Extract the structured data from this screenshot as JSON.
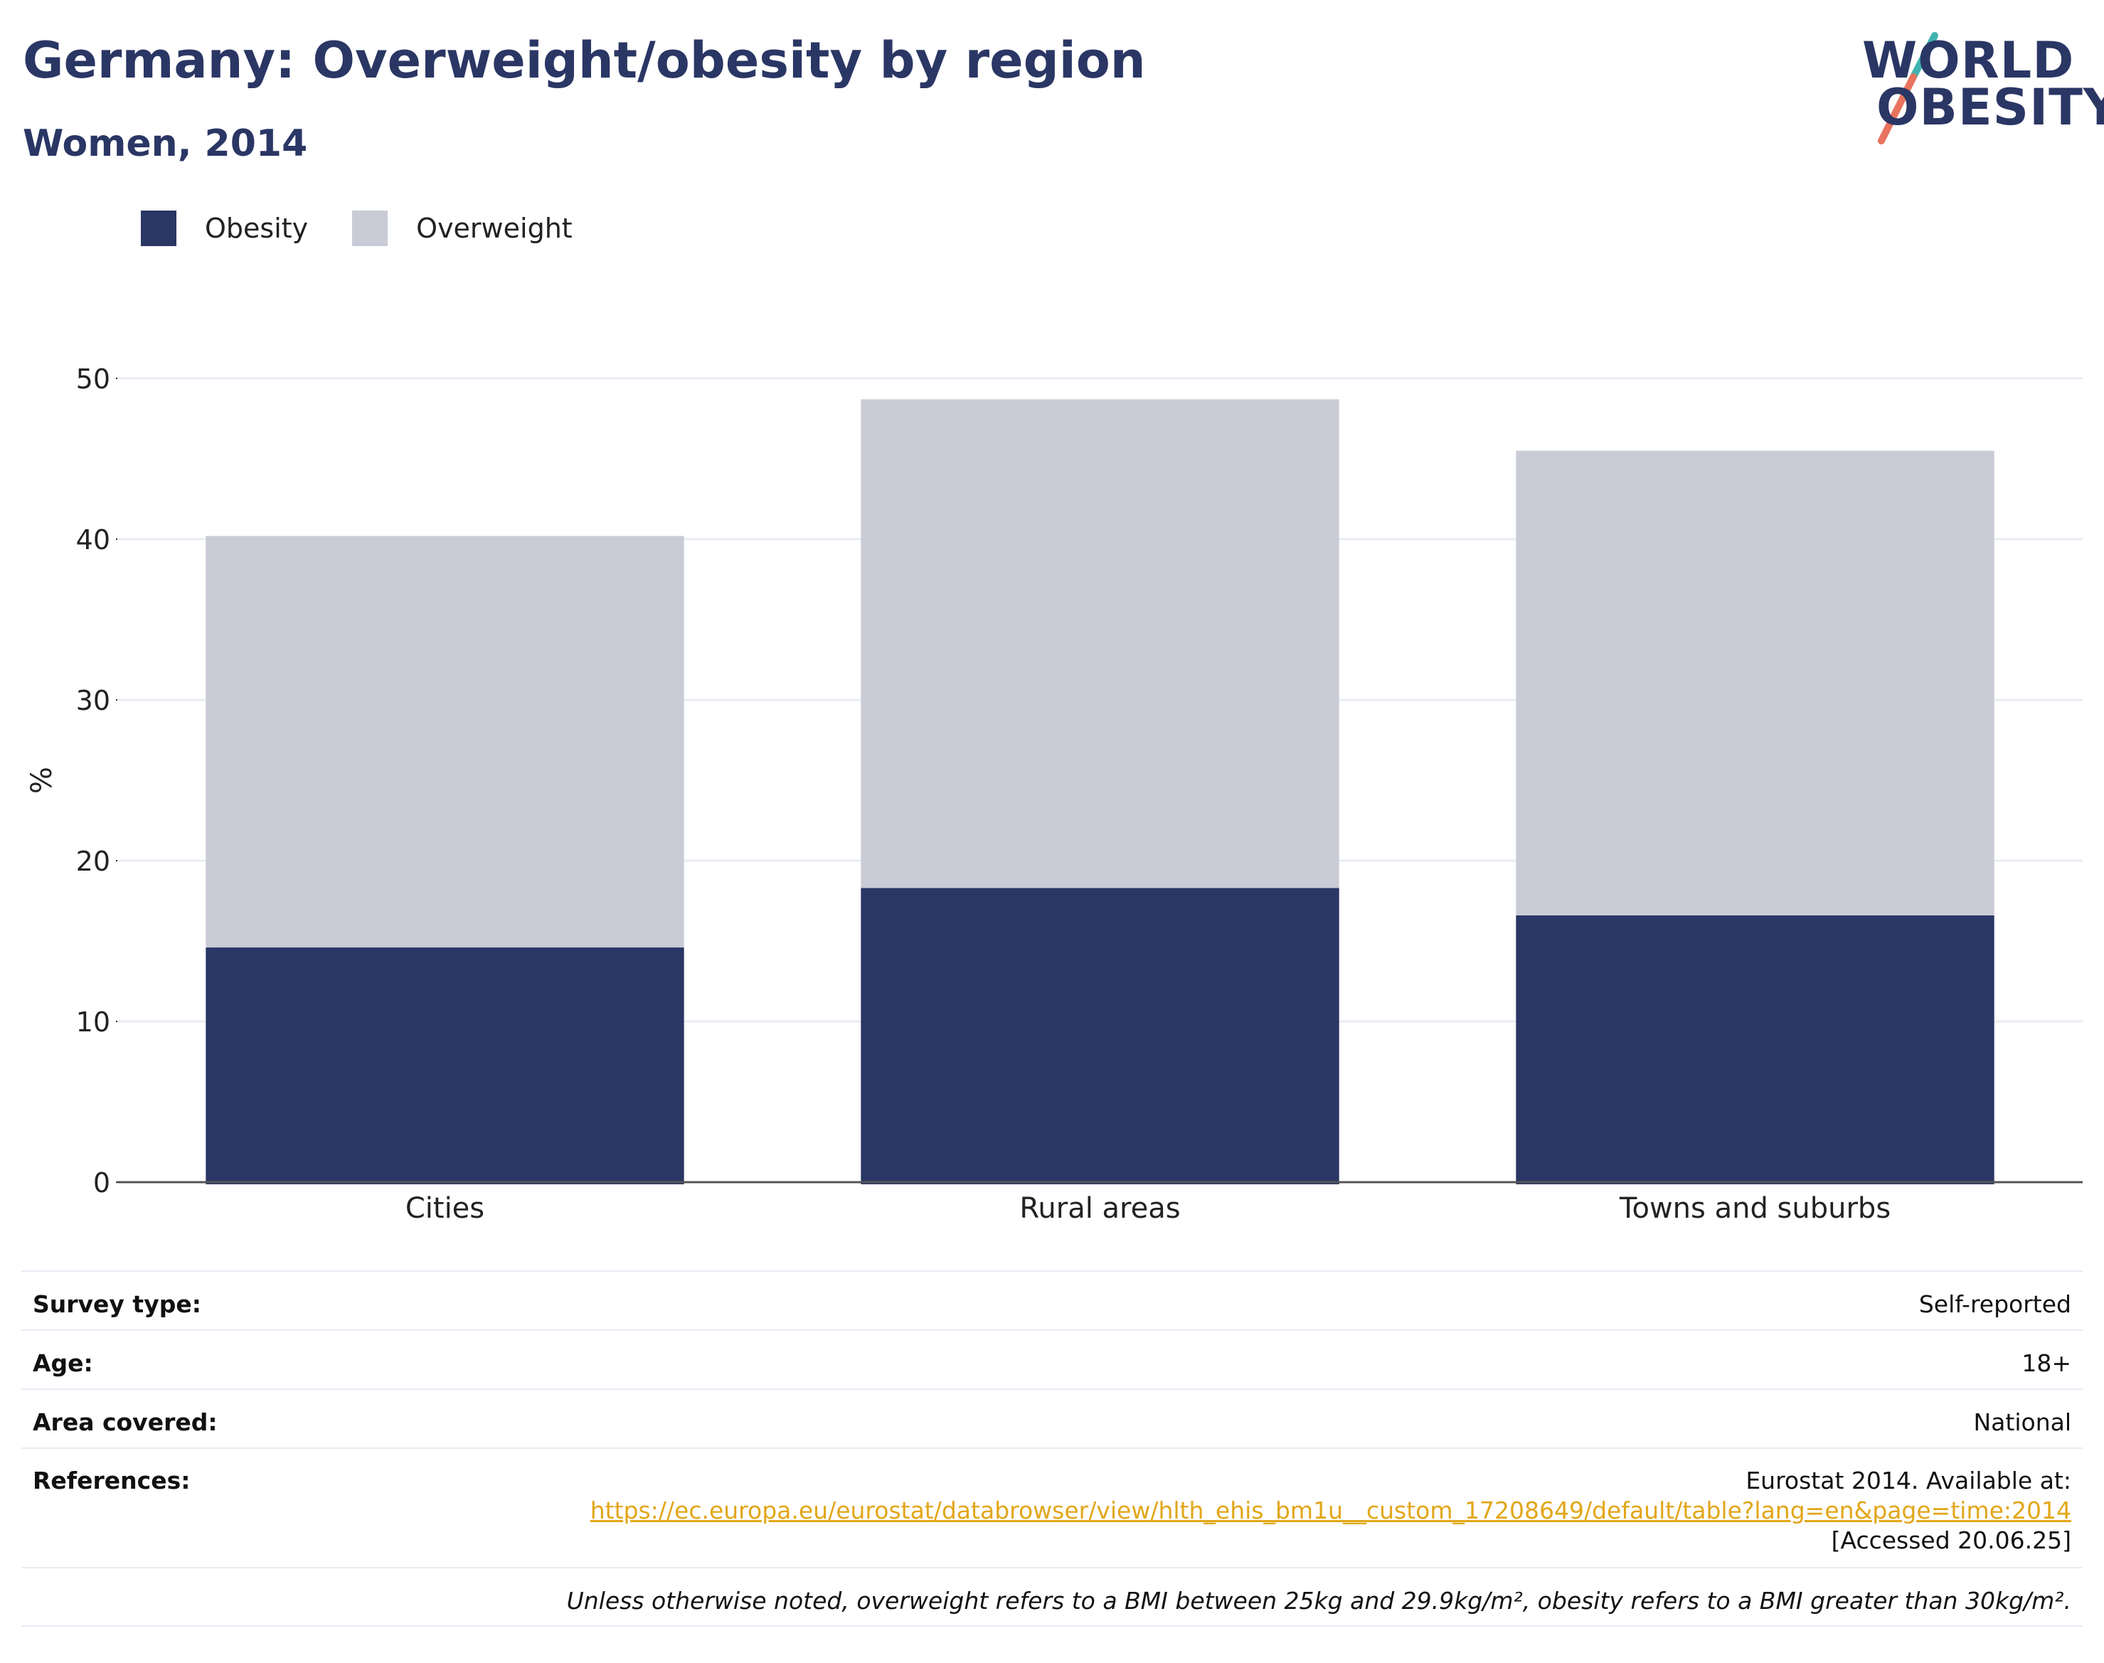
{
  "header": {
    "title": "Germany: Overweight/obesity by region",
    "subtitle": "Women, 2014"
  },
  "logo": {
    "line1": "WORLD",
    "line2": "OBESITY",
    "colors": {
      "navy": "#2a3664",
      "teal": "#3fb3b0",
      "coral": "#e8735e"
    }
  },
  "legend": [
    {
      "label": "Obesity",
      "color": "#2a3664"
    },
    {
      "label": "Overweight",
      "color": "#c9cbd6"
    }
  ],
  "chart_data": {
    "type": "bar",
    "stacked": true,
    "categories": [
      "Cities",
      "Rural areas",
      "Towns and suburbs"
    ],
    "series": [
      {
        "name": "Obesity",
        "color": "#2a3664",
        "values": [
          14.6,
          18.3,
          16.6
        ]
      },
      {
        "name": "Overweight",
        "color": "#c9cbd6",
        "values": [
          25.6,
          30.4,
          28.9
        ]
      }
    ],
    "totals": [
      40.2,
      48.7,
      45.5
    ],
    "ylabel": "%",
    "xlabel": "",
    "ylim": [
      0,
      50
    ],
    "yticks": [
      0,
      10,
      20,
      30,
      40,
      50
    ],
    "grid": true,
    "legend_position": "top-left"
  },
  "info": {
    "survey_type": {
      "label": "Survey type:",
      "value": "Self-reported"
    },
    "age": {
      "label": "Age:",
      "value": "18+"
    },
    "area": {
      "label": "Area covered:",
      "value": "National"
    },
    "references": {
      "label": "References:",
      "line1": "Eurostat 2014. Available at:",
      "link": "https://ec.europa.eu/eurostat/databrowser/view/hlth_ehis_bm1u__custom_17208649/default/table?lang=en&page=time:2014",
      "line3": "[Accessed 20.06.25]"
    },
    "note": "Unless otherwise noted, overweight refers to a BMI between 25kg and 29.9kg/m², obesity refers to a BMI greater than 30kg/m²."
  }
}
